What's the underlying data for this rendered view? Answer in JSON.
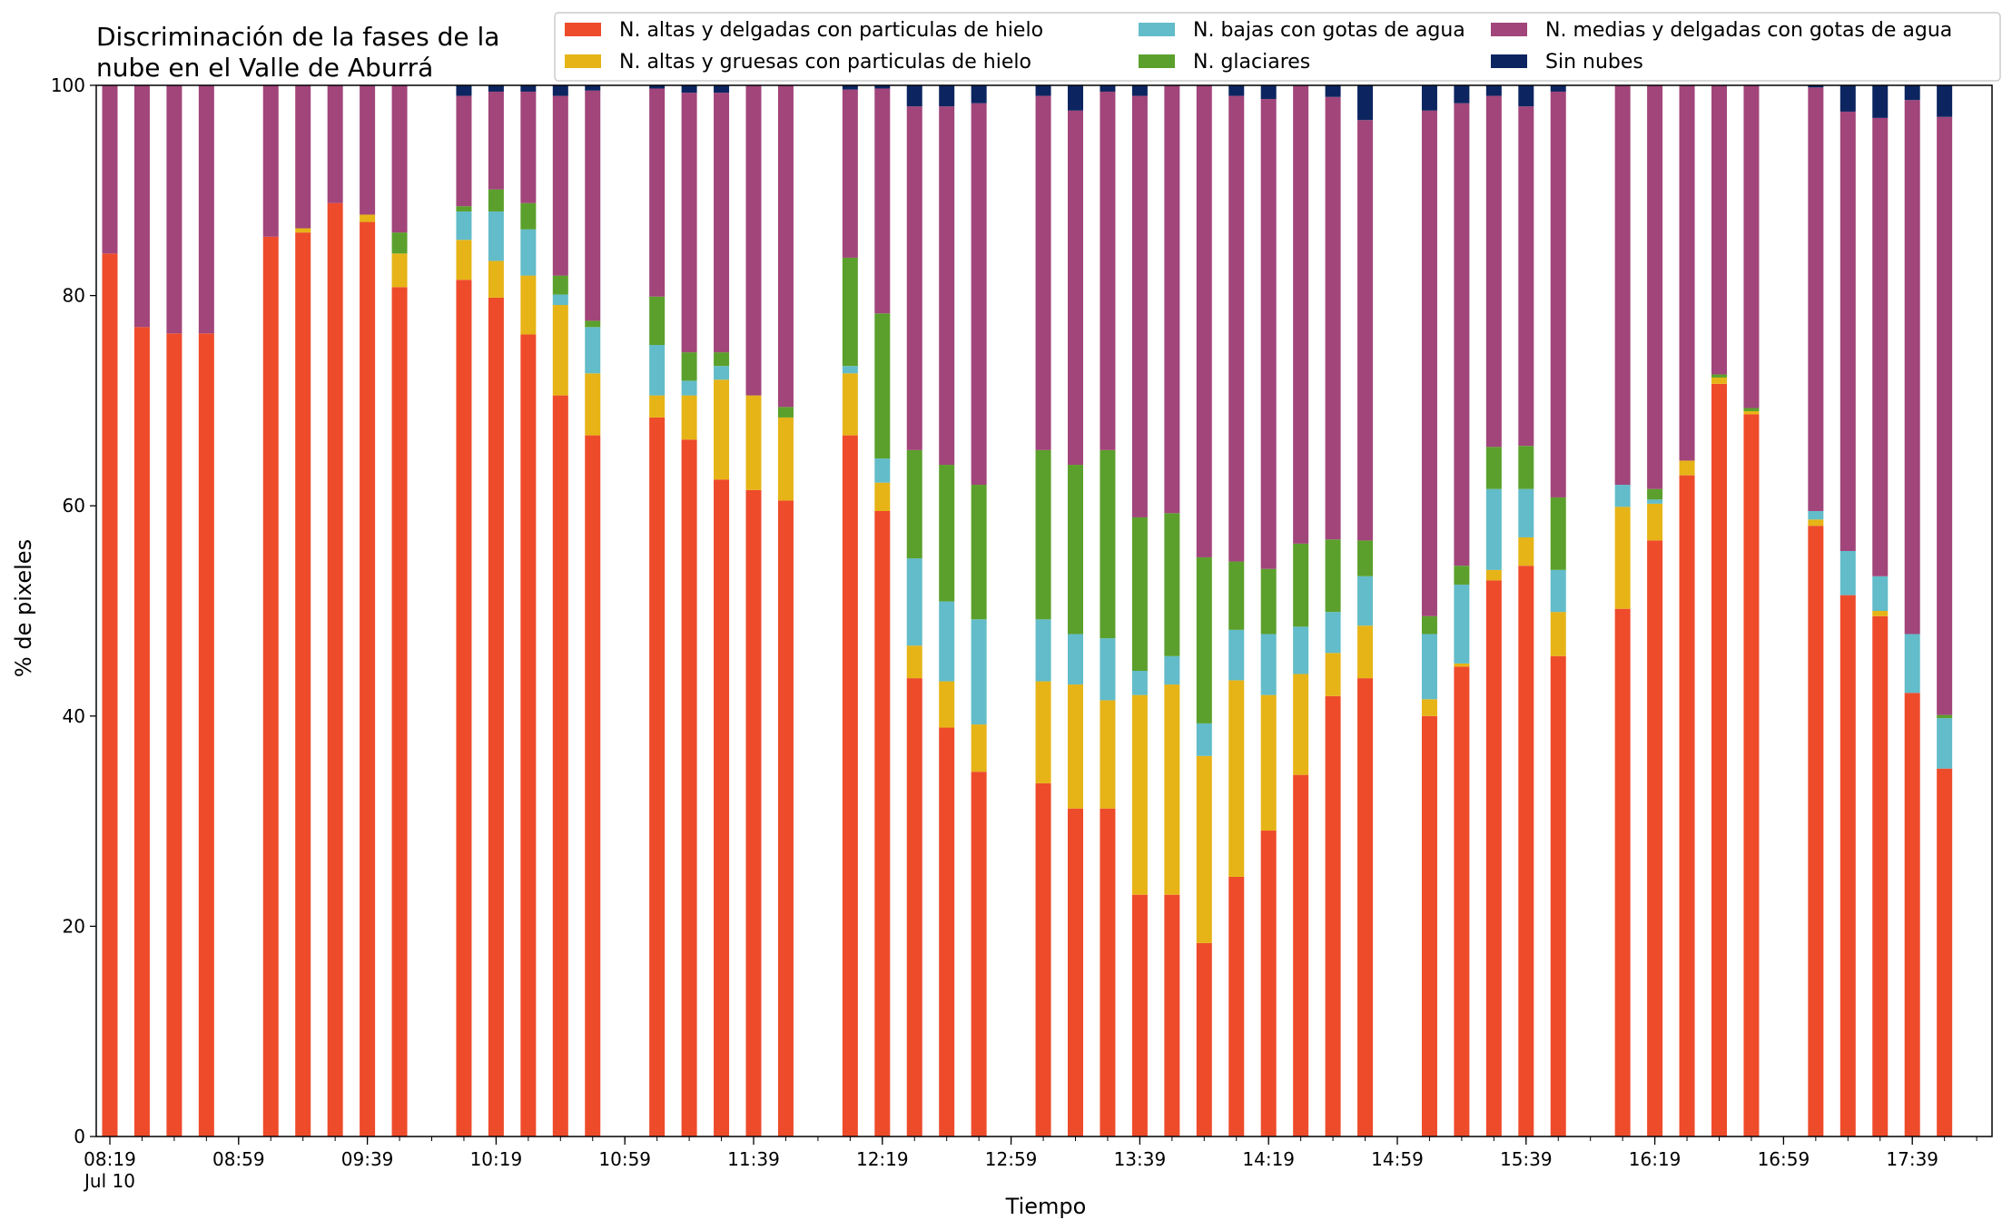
{
  "chart_data": {
    "type": "bar",
    "stacked": true,
    "title": [
      "Discriminación de la fases de la",
      "nube en el Valle de Aburrá"
    ],
    "xlabel": "Tiempo",
    "ylabel": "% de pixeles",
    "ylim": [
      0,
      100
    ],
    "yticks": [
      "0",
      "20",
      "40",
      "60",
      "80",
      "100"
    ],
    "x_start_time": "08:19",
    "x_end_time": "17:59",
    "x_step_minutes": 10,
    "xticks": [
      {
        "time": "08:19",
        "label": "08:19",
        "sublabel": "Jul 10"
      },
      {
        "time": "08:59",
        "label": "08:59"
      },
      {
        "time": "09:39",
        "label": "09:39"
      },
      {
        "time": "10:19",
        "label": "10:19"
      },
      {
        "time": "10:59",
        "label": "10:59"
      },
      {
        "time": "11:39",
        "label": "11:39"
      },
      {
        "time": "12:19",
        "label": "12:19"
      },
      {
        "time": "12:59",
        "label": "12:59"
      },
      {
        "time": "13:39",
        "label": "13:39"
      },
      {
        "time": "14:19",
        "label": "14:19"
      },
      {
        "time": "14:59",
        "label": "14:59"
      },
      {
        "time": "15:39",
        "label": "15:39"
      },
      {
        "time": "16:19",
        "label": "16:19"
      },
      {
        "time": "16:59",
        "label": "16:59"
      },
      {
        "time": "17:39",
        "label": "17:39"
      }
    ],
    "legend": {
      "placement": "top",
      "columns": 3
    },
    "series": [
      {
        "name": "N. altas y delgadas con particulas de hielo",
        "color": "#ee4b2b"
      },
      {
        "name": "N. altas y gruesas con particulas de hielo",
        "color": "#e6b417"
      },
      {
        "name": "N. bajas con gotas de agua",
        "color": "#62bcc9"
      },
      {
        "name": "N. glaciares",
        "color": "#5ba02c"
      },
      {
        "name": "N. medias y delgadas con gotas de agua",
        "color": "#a1457a"
      },
      {
        "name": "Sin nubes",
        "color": "#0c2560"
      }
    ],
    "bars": [
      {
        "time": "08:19",
        "values": [
          84,
          0,
          0,
          0,
          16,
          0
        ]
      },
      {
        "time": "08:29",
        "values": [
          77,
          0,
          0,
          0,
          23,
          0
        ]
      },
      {
        "time": "08:39",
        "values": [
          76.4,
          0,
          0,
          0,
          23.6,
          0
        ]
      },
      {
        "time": "08:49",
        "values": [
          76.4,
          0,
          0,
          0,
          23.6,
          0
        ]
      },
      {
        "time": "09:09",
        "values": [
          85.6,
          0,
          0,
          0,
          14.4,
          0
        ]
      },
      {
        "time": "09:19",
        "values": [
          86,
          0.4,
          0,
          0,
          13.6,
          0
        ]
      },
      {
        "time": "09:29",
        "values": [
          88.8,
          0,
          0,
          0,
          11.2,
          0
        ]
      },
      {
        "time": "09:39",
        "values": [
          87,
          0.7,
          0,
          0,
          12.3,
          0
        ]
      },
      {
        "time": "09:49",
        "values": [
          80.8,
          3.2,
          0,
          2,
          14,
          0
        ]
      },
      {
        "time": "10:09",
        "values": [
          81.5,
          3.8,
          2.7,
          0.5,
          10.5,
          1
        ]
      },
      {
        "time": "10:19",
        "values": [
          79.8,
          3.5,
          4.7,
          2.1,
          9.3,
          0.6
        ]
      },
      {
        "time": "10:29",
        "values": [
          76.3,
          5.6,
          4.4,
          2.5,
          10.6,
          0.6
        ]
      },
      {
        "time": "10:39",
        "values": [
          70.5,
          8.6,
          1,
          1.8,
          17.1,
          1
        ]
      },
      {
        "time": "10:49",
        "values": [
          66.7,
          5.9,
          4.4,
          0.6,
          21.9,
          0.5
        ]
      },
      {
        "time": "11:09",
        "values": [
          68.4,
          2.1,
          4.8,
          4.6,
          19.8,
          0.3
        ]
      },
      {
        "time": "11:19",
        "values": [
          66.3,
          4.2,
          1.4,
          2.7,
          24.7,
          0.7
        ]
      },
      {
        "time": "11:29",
        "values": [
          62.5,
          9.5,
          1.3,
          1.3,
          24.7,
          0.7
        ]
      },
      {
        "time": "11:39",
        "values": [
          61.5,
          9,
          0,
          0,
          29.5,
          0
        ]
      },
      {
        "time": "11:49",
        "values": [
          60.5,
          7.9,
          0,
          1,
          30.6,
          0
        ]
      },
      {
        "time": "12:09",
        "values": [
          66.7,
          5.9,
          0.7,
          10.3,
          16,
          0.4
        ]
      },
      {
        "time": "12:19",
        "values": [
          59.5,
          2.7,
          2.3,
          13.8,
          21.4,
          0.3
        ]
      },
      {
        "time": "12:29",
        "values": [
          43.6,
          3.1,
          8.3,
          10.3,
          32.7,
          2
        ]
      },
      {
        "time": "12:39",
        "values": [
          38.9,
          4.4,
          7.6,
          13,
          34.1,
          2
        ]
      },
      {
        "time": "12:49",
        "values": [
          34.7,
          4.5,
          10,
          12.8,
          36.3,
          1.7
        ]
      },
      {
        "time": "13:09",
        "values": [
          33.6,
          9.7,
          5.9,
          16.1,
          33.7,
          1
        ]
      },
      {
        "time": "13:19",
        "values": [
          31.2,
          11.8,
          4.8,
          16.1,
          33.7,
          2.4
        ]
      },
      {
        "time": "13:29",
        "values": [
          31.2,
          10.3,
          5.9,
          17.9,
          34.1,
          0.6
        ]
      },
      {
        "time": "13:39",
        "values": [
          23,
          19,
          2.3,
          14.6,
          40.1,
          1
        ]
      },
      {
        "time": "13:49",
        "values": [
          23,
          20,
          2.7,
          13.6,
          40.7,
          0
        ]
      },
      {
        "time": "13:59",
        "values": [
          18.4,
          17.8,
          3.1,
          15.8,
          44.9,
          0
        ]
      },
      {
        "time": "14:09",
        "values": [
          24.7,
          18.7,
          4.8,
          6.5,
          44.3,
          1
        ]
      },
      {
        "time": "14:19",
        "values": [
          29.1,
          12.9,
          5.8,
          6.2,
          44.7,
          1.3
        ]
      },
      {
        "time": "14:29",
        "values": [
          34.4,
          9.6,
          4.5,
          7.9,
          43.6,
          0
        ]
      },
      {
        "time": "14:39",
        "values": [
          41.9,
          4.1,
          3.9,
          6.9,
          42.1,
          1.1
        ]
      },
      {
        "time": "14:49",
        "values": [
          43.6,
          5,
          4.7,
          3.4,
          40,
          3.3
        ]
      },
      {
        "time": "15:09",
        "values": [
          40,
          1.6,
          6.2,
          1.7,
          48.1,
          2.4
        ]
      },
      {
        "time": "15:19",
        "values": [
          44.7,
          0.3,
          7.5,
          1.8,
          44,
          1.7
        ]
      },
      {
        "time": "15:29",
        "values": [
          52.9,
          1,
          7.7,
          4,
          33.4,
          1
        ]
      },
      {
        "time": "15:39",
        "values": [
          54.3,
          2.7,
          4.6,
          4.1,
          32.3,
          2
        ]
      },
      {
        "time": "15:49",
        "values": [
          45.7,
          4.2,
          4,
          6.9,
          38.6,
          0.6
        ]
      },
      {
        "time": "16:09",
        "values": [
          50.2,
          9.7,
          2.1,
          0,
          38,
          0
        ]
      },
      {
        "time": "16:19",
        "values": [
          56.7,
          3.5,
          0.4,
          1,
          38.4,
          0
        ]
      },
      {
        "time": "16:29",
        "values": [
          62.9,
          1.4,
          0,
          0,
          35.7,
          0
        ]
      },
      {
        "time": "16:39",
        "values": [
          71.6,
          0.6,
          0,
          0.3,
          27.5,
          0
        ]
      },
      {
        "time": "16:49",
        "values": [
          68.7,
          0.3,
          0,
          0.3,
          30.7,
          0
        ]
      },
      {
        "time": "17:09",
        "values": [
          58.1,
          0.6,
          0.8,
          0,
          40.3,
          0.2
        ]
      },
      {
        "time": "17:19",
        "values": [
          51.5,
          0,
          4.2,
          0,
          41.8,
          2.5
        ]
      },
      {
        "time": "17:29",
        "values": [
          49.5,
          0.5,
          3.3,
          0,
          43.6,
          3.1
        ]
      },
      {
        "time": "17:39",
        "values": [
          42.2,
          0,
          5.6,
          0,
          50.8,
          1.4
        ]
      },
      {
        "time": "17:49",
        "values": [
          35,
          0,
          4.8,
          0.3,
          56.9,
          3
        ]
      }
    ]
  }
}
